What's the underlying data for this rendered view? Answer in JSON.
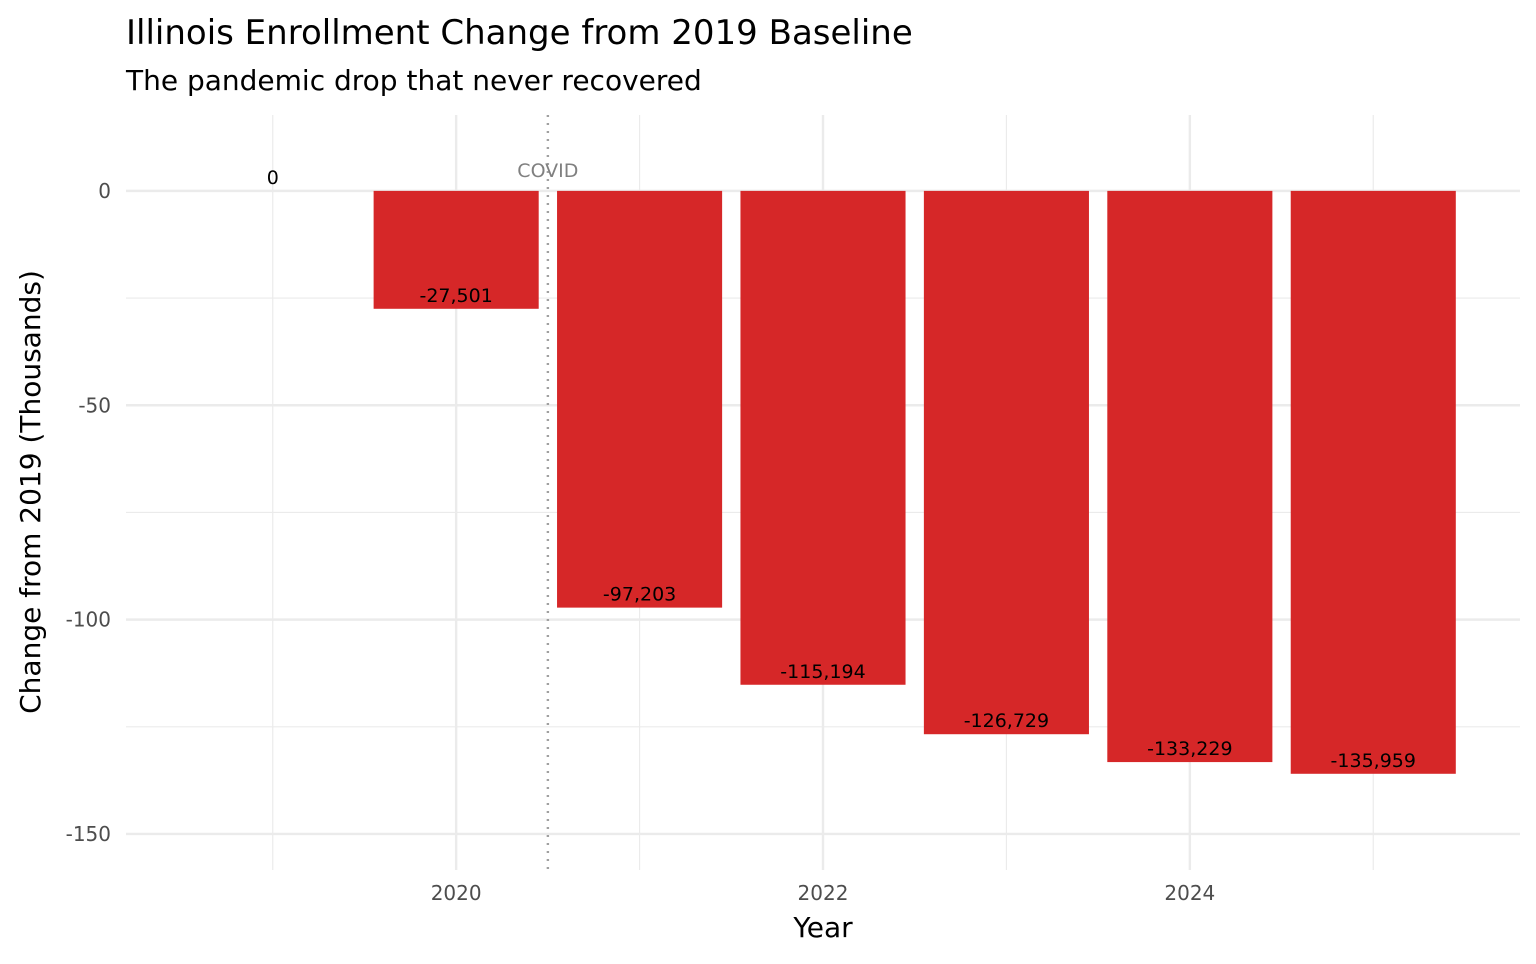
{
  "chart_data": {
    "type": "bar",
    "title": "Illinois Enrollment Change from 2019 Baseline",
    "subtitle": "The pandemic drop that never recovered",
    "xlabel": "Year",
    "ylabel": "Change from 2019 (Thousands)",
    "x": [
      2019,
      2020,
      2021,
      2022,
      2023,
      2024,
      2025
    ],
    "values": [
      0,
      -27.501,
      -97.203,
      -115.194,
      -126.729,
      -133.229,
      -135.959
    ],
    "data_labels": [
      "0",
      "-27,501",
      "-97,203",
      "-115,194",
      "-126,729",
      "-133,229",
      "-135,959"
    ],
    "xticks": [
      2020,
      2022,
      2024
    ],
    "xtick_labels": [
      "2020",
      "2022",
      "2024"
    ],
    "yticks": [
      0,
      -50,
      -100,
      -150
    ],
    "ytick_labels": [
      "0",
      "-50",
      "-100",
      "-150"
    ],
    "xlim": [
      2018.2,
      2025.8
    ],
    "ylim": [
      -158.4,
      17.7
    ],
    "grid": true,
    "annotation": {
      "x": 2020.5,
      "label": "COVID"
    },
    "colors": {
      "bar": "#D62728",
      "vline": "#A0A0A0",
      "annotation": "#808080"
    }
  }
}
